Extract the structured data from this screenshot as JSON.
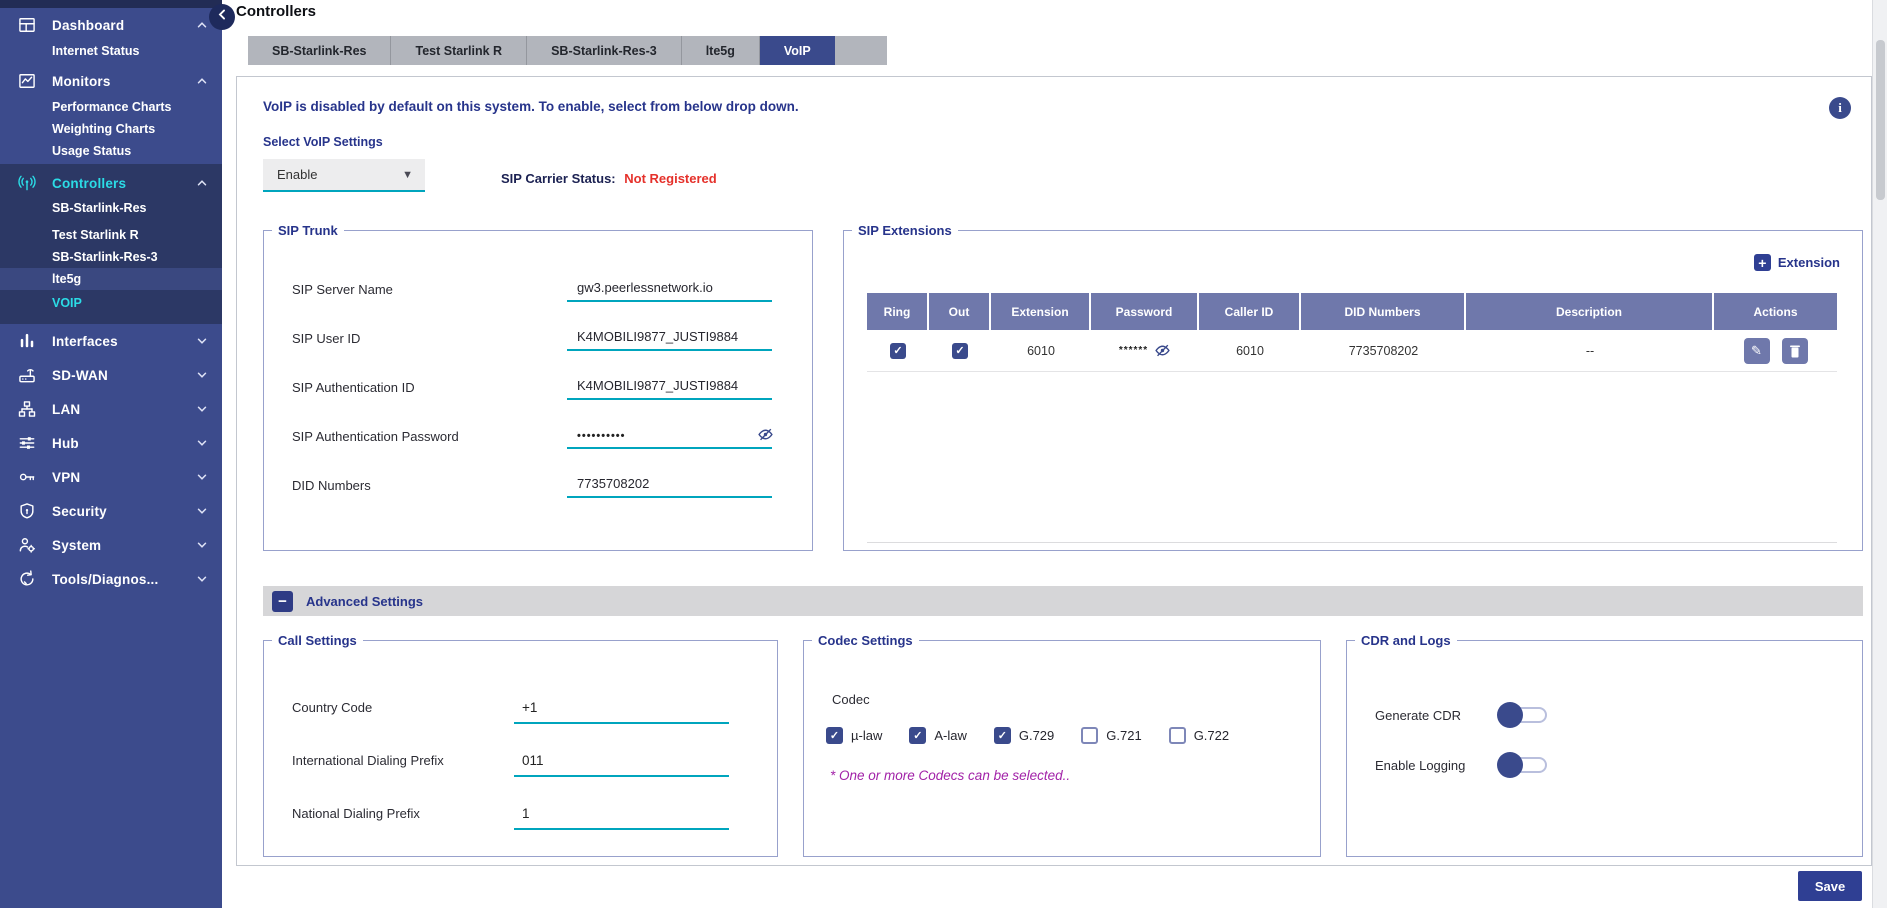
{
  "colors": {
    "sidebar": "#3C4B8C",
    "sidebar_dark": "#2C3865",
    "accent_navy": "#3A4A8C",
    "cyan": "#2BDCE6",
    "teal_underline": "#00A5BD",
    "table_header": "#6F78AB",
    "status_red": "#E5312B",
    "note_magenta": "#A222A8"
  },
  "sidebar": {
    "groups": [
      {
        "label": "Dashboard",
        "icon": "dashboard-icon",
        "chevron": "up",
        "children": [
          {
            "label": "Internet Status"
          }
        ]
      },
      {
        "label": "Monitors",
        "icon": "monitors-icon",
        "chevron": "up",
        "children": [
          {
            "label": "Performance Charts"
          },
          {
            "label": "Weighting Charts"
          },
          {
            "label": "Usage Status"
          }
        ]
      },
      {
        "label": "Controllers",
        "icon": "controllers-icon",
        "chevron": "up",
        "active": true,
        "children": [
          {
            "label": "SB-Starlink-Res"
          },
          {
            "label": "Test Starlink R"
          },
          {
            "label": "SB-Starlink-Res-3"
          },
          {
            "label": "lte5g",
            "highlighted": true
          },
          {
            "label": "VOIP",
            "selected": true
          }
        ]
      },
      {
        "label": "Interfaces",
        "icon": "interfaces-icon",
        "chevron": "down"
      },
      {
        "label": "SD-WAN",
        "icon": "sdwan-icon",
        "chevron": "down"
      },
      {
        "label": "LAN",
        "icon": "lan-icon",
        "chevron": "down"
      },
      {
        "label": "Hub",
        "icon": "hub-icon",
        "chevron": "down"
      },
      {
        "label": "VPN",
        "icon": "vpn-icon",
        "chevron": "down"
      },
      {
        "label": "Security",
        "icon": "security-icon",
        "chevron": "down"
      },
      {
        "label": "System",
        "icon": "system-icon",
        "chevron": "down"
      },
      {
        "label": "Tools/Diagnos...",
        "icon": "tools-icon",
        "chevron": "down"
      }
    ]
  },
  "header": {
    "title": "Controllers"
  },
  "tabs": [
    {
      "label": "SB-Starlink-Res"
    },
    {
      "label": "Test Starlink R"
    },
    {
      "label": "SB-Starlink-Res-3"
    },
    {
      "label": "lte5g"
    },
    {
      "label": "VoIP",
      "active": true
    }
  ],
  "main": {
    "notice": "VoIP is disabled by default on this system. To enable, select from below drop down.",
    "voip_select": {
      "label": "Select VoIP Settings",
      "value": "Enable"
    },
    "carrier": {
      "label": "SIP Carrier Status:",
      "value": "Not Registered"
    },
    "sip_trunk": {
      "legend": "SIP Trunk",
      "fields": [
        {
          "label": "SIP Server Name",
          "value": "gw3.peerlessnetwork.io",
          "masked": false
        },
        {
          "label": "SIP User ID",
          "value": "K4MOBILI9877_JUSTI9884",
          "masked": false
        },
        {
          "label": "SIP Authentication ID",
          "value": "K4MOBILI9877_JUSTI9884",
          "masked": false
        },
        {
          "label": "SIP Authentication Password",
          "value": "••••••••••",
          "masked": true
        },
        {
          "label": "DID Numbers",
          "value": "7735708202",
          "masked": false
        }
      ]
    },
    "sip_extensions": {
      "legend": "SIP Extensions",
      "add_label": "Extension",
      "columns": [
        "Ring",
        "Out",
        "Extension",
        "Password",
        "Caller ID",
        "DID Numbers",
        "Description",
        "Actions"
      ],
      "rows": [
        {
          "ring": true,
          "out": true,
          "extension": "6010",
          "password_mask": "******",
          "caller_id": "6010",
          "did_numbers": "7735708202",
          "description": "--"
        }
      ]
    },
    "advanced_label": "Advanced Settings",
    "call_settings": {
      "legend": "Call Settings",
      "fields": [
        {
          "label": "Country Code",
          "value": "+1"
        },
        {
          "label": "International Dialing Prefix",
          "value": "011"
        },
        {
          "label": "National Dialing Prefix",
          "value": "1"
        }
      ]
    },
    "codec_settings": {
      "legend": "Codec Settings",
      "codec_label": "Codec",
      "options": [
        {
          "label": "µ-law",
          "checked": true
        },
        {
          "label": "A-law",
          "checked": true
        },
        {
          "label": "G.729",
          "checked": true
        },
        {
          "label": "G.721",
          "checked": false
        },
        {
          "label": "G.722",
          "checked": false
        }
      ],
      "note": "* One or more Codecs can be selected.."
    },
    "cdr": {
      "legend": "CDR and Logs",
      "toggles": [
        {
          "label": "Generate CDR",
          "on": false
        },
        {
          "label": "Enable Logging",
          "on": false
        }
      ]
    },
    "save_label": "Save"
  }
}
